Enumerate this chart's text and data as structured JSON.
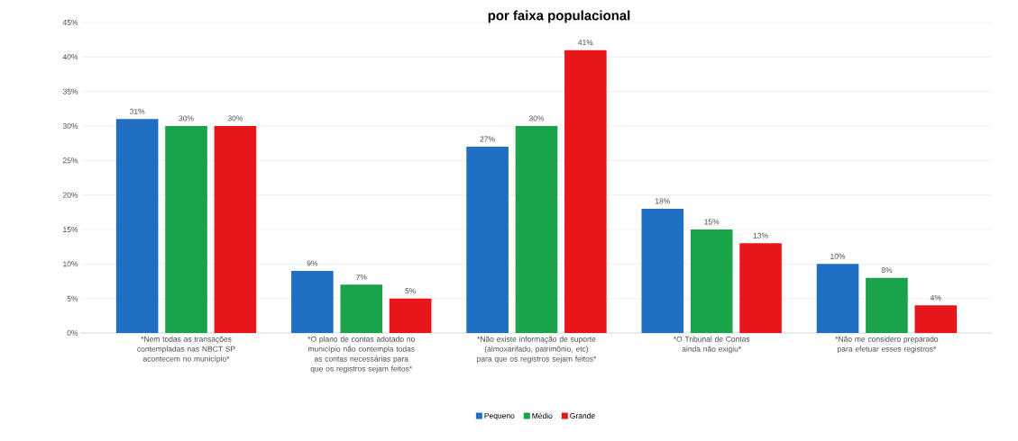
{
  "chart_data": {
    "type": "bar",
    "title": "por faixa populacional",
    "categories": [
      "*Nem todas as transações contempladas nas NBCT SP acontecem no município*",
      "*O plano de contas adotado no município não contempla todas as contas necessárias para que os registros sejam feitos*",
      "*Não existe informação de suporte (almoxarifado, patrimônio, etc) para que os registros sejam feitos*",
      "*O Tribunal de Contas ainda não exigiu*",
      "*Não me considero preparado para efetuar esses registros*"
    ],
    "series": [
      {
        "name": "Pequeno",
        "color": "#1f6fc5",
        "values": [
          31,
          9,
          27,
          18,
          10
        ],
        "value_labels": [
          "31%",
          "9%",
          "27%",
          "18%",
          "10%"
        ]
      },
      {
        "name": "Médio",
        "color": "#1aa34a",
        "values": [
          30,
          7,
          30,
          15,
          8
        ],
        "value_labels": [
          "30%",
          "7%",
          "30%",
          "15%",
          "8%"
        ]
      },
      {
        "name": "Grande",
        "color": "#e8161b",
        "values": [
          30,
          5,
          41,
          13,
          4
        ],
        "value_labels": [
          "30%",
          "5%",
          "41%",
          "13%",
          "4%"
        ]
      }
    ],
    "ylim": [
      0,
      45
    ],
    "yticks": [
      {
        "value": 0,
        "label": "0%"
      },
      {
        "value": 5,
        "label": "5%"
      },
      {
        "value": 10,
        "label": "10%"
      },
      {
        "value": 15,
        "label": "15%"
      },
      {
        "value": 20,
        "label": "20%"
      },
      {
        "value": 25,
        "label": "25%"
      },
      {
        "value": 30,
        "label": "30%"
      },
      {
        "value": 35,
        "label": "35%"
      },
      {
        "value": 40,
        "label": "40%"
      },
      {
        "value": 45,
        "label": "45%"
      }
    ],
    "grid": "y",
    "legend": "bottom"
  }
}
